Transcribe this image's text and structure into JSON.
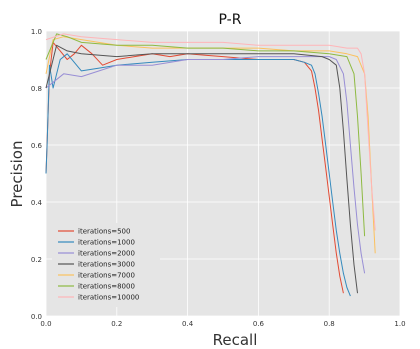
{
  "chart_data": {
    "type": "line",
    "title": "P-R",
    "xlabel": "Recall",
    "ylabel": "Precision",
    "xlim": [
      0.0,
      1.0
    ],
    "ylim": [
      0.0,
      1.0
    ],
    "xticks": [
      "0.0",
      "0.2",
      "0.4",
      "0.6",
      "0.8",
      "1.0"
    ],
    "yticks": [
      "0.0",
      "0.2",
      "0.4",
      "0.6",
      "0.8",
      "1.0"
    ],
    "grid": true,
    "legend_position": "lower-left",
    "series": [
      {
        "name": "iterations=500",
        "color": "#e24a33",
        "x": [
          0.0,
          0.01,
          0.02,
          0.04,
          0.06,
          0.08,
          0.1,
          0.13,
          0.16,
          0.2,
          0.25,
          0.3,
          0.35,
          0.4,
          0.45,
          0.5,
          0.55,
          0.6,
          0.65,
          0.7,
          0.73,
          0.75,
          0.76,
          0.77,
          0.78,
          0.79,
          0.8,
          0.81,
          0.82,
          0.83,
          0.84
        ],
        "y": [
          0.5,
          0.85,
          0.96,
          0.93,
          0.9,
          0.92,
          0.95,
          0.92,
          0.88,
          0.9,
          0.91,
          0.92,
          0.91,
          0.92,
          0.915,
          0.91,
          0.905,
          0.9,
          0.9,
          0.9,
          0.89,
          0.86,
          0.8,
          0.72,
          0.62,
          0.52,
          0.42,
          0.32,
          0.22,
          0.14,
          0.08
        ]
      },
      {
        "name": "iterations=1000",
        "color": "#348abd",
        "x": [
          0.0,
          0.003,
          0.01,
          0.02,
          0.04,
          0.06,
          0.1,
          0.15,
          0.2,
          0.3,
          0.4,
          0.5,
          0.6,
          0.65,
          0.7,
          0.73,
          0.75,
          0.76,
          0.77,
          0.78,
          0.79,
          0.8,
          0.81,
          0.82,
          0.83,
          0.84,
          0.85,
          0.86
        ],
        "y": [
          0.5,
          0.6,
          0.88,
          0.8,
          0.9,
          0.92,
          0.86,
          0.87,
          0.88,
          0.89,
          0.9,
          0.9,
          0.9,
          0.9,
          0.9,
          0.89,
          0.88,
          0.85,
          0.78,
          0.7,
          0.6,
          0.5,
          0.4,
          0.3,
          0.22,
          0.15,
          0.1,
          0.07
        ]
      },
      {
        "name": "iterations=2000",
        "color": "#988ed5",
        "x": [
          0.0,
          0.02,
          0.05,
          0.1,
          0.15,
          0.2,
          0.3,
          0.4,
          0.5,
          0.6,
          0.7,
          0.8,
          0.82,
          0.84,
          0.85,
          0.86,
          0.87,
          0.88,
          0.89,
          0.9
        ],
        "y": [
          0.8,
          0.82,
          0.85,
          0.84,
          0.86,
          0.88,
          0.88,
          0.9,
          0.9,
          0.91,
          0.91,
          0.91,
          0.9,
          0.85,
          0.75,
          0.6,
          0.45,
          0.32,
          0.22,
          0.15
        ]
      },
      {
        "name": "iterations=3000",
        "color": "#555555",
        "x": [
          0.0,
          0.03,
          0.06,
          0.1,
          0.2,
          0.3,
          0.4,
          0.5,
          0.6,
          0.7,
          0.78,
          0.8,
          0.82,
          0.83,
          0.84,
          0.85,
          0.86,
          0.87,
          0.88
        ],
        "y": [
          0.8,
          0.95,
          0.93,
          0.92,
          0.91,
          0.92,
          0.92,
          0.92,
          0.92,
          0.92,
          0.91,
          0.9,
          0.88,
          0.8,
          0.65,
          0.48,
          0.32,
          0.18,
          0.08
        ]
      },
      {
        "name": "iterations=7000",
        "color": "#fbc15e",
        "x": [
          0.0,
          0.02,
          0.05,
          0.1,
          0.2,
          0.3,
          0.4,
          0.5,
          0.6,
          0.7,
          0.8,
          0.85,
          0.88,
          0.9,
          0.91,
          0.92,
          0.93
        ],
        "y": [
          0.85,
          0.97,
          0.98,
          0.97,
          0.95,
          0.94,
          0.94,
          0.94,
          0.94,
          0.93,
          0.93,
          0.92,
          0.91,
          0.85,
          0.7,
          0.45,
          0.22
        ]
      },
      {
        "name": "iterations=8000",
        "color": "#8eba42",
        "x": [
          0.0,
          0.03,
          0.06,
          0.1,
          0.2,
          0.3,
          0.4,
          0.5,
          0.6,
          0.7,
          0.8,
          0.85,
          0.87,
          0.88,
          0.89,
          0.9
        ],
        "y": [
          0.9,
          0.99,
          0.98,
          0.96,
          0.95,
          0.95,
          0.94,
          0.94,
          0.93,
          0.93,
          0.92,
          0.91,
          0.85,
          0.7,
          0.5,
          0.28
        ]
      },
      {
        "name": "iterations=10000",
        "color": "#ffb5b8",
        "x": [
          0.0,
          0.05,
          0.1,
          0.2,
          0.3,
          0.4,
          0.5,
          0.6,
          0.7,
          0.8,
          0.85,
          0.88,
          0.89,
          0.9,
          0.91,
          0.92,
          0.93
        ],
        "y": [
          0.97,
          0.99,
          0.98,
          0.97,
          0.96,
          0.96,
          0.96,
          0.95,
          0.95,
          0.95,
          0.94,
          0.94,
          0.92,
          0.85,
          0.65,
          0.45,
          0.3
        ]
      }
    ]
  }
}
